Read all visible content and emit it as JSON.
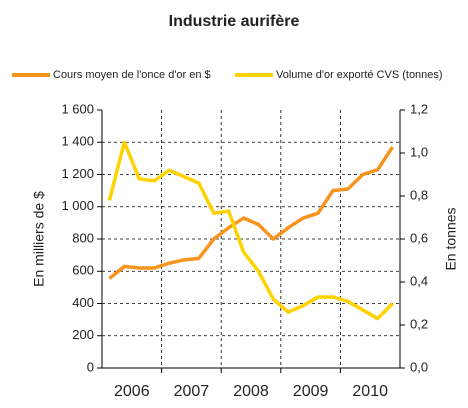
{
  "chart_data": {
    "type": "line",
    "title": "Industrie aurifère",
    "categories": [
      "2006",
      null,
      null,
      null,
      "2007",
      null,
      null,
      null,
      "2008",
      null,
      null,
      null,
      "2009",
      null,
      null,
      null,
      "2010",
      null,
      null,
      null
    ],
    "series": [
      {
        "name": "Cours moyen de l'once d'or en $",
        "color": "#f7941d",
        "values": [
          555,
          630,
          620,
          620,
          650,
          670,
          680,
          800,
          870,
          930,
          890,
          800,
          870,
          930,
          960,
          1100,
          1110,
          1200,
          1230,
          1370
        ]
      },
      {
        "name": "Volume d'or exporté CVS (tonnes)",
        "color": "#ffd200",
        "axis": "y2",
        "values": [
          0.78,
          1.05,
          0.88,
          0.87,
          0.92,
          0.89,
          0.86,
          0.72,
          0.73,
          0.54,
          0.45,
          0.32,
          0.26,
          0.29,
          0.33,
          0.33,
          0.31,
          0.27,
          0.23,
          0.3
        ]
      }
    ],
    "ylabel": "En milliers de $",
    "y2label": "En tonnes",
    "ylim": [
      0,
      1600
    ],
    "yticks": [
      0,
      200,
      400,
      600,
      800,
      {
        "value": 1000,
        "label": "1 000"
      },
      {
        "value": 1200,
        "label": "1 200"
      },
      {
        "value": 1400,
        "label": "1 400"
      },
      {
        "value": 1600,
        "label": "1 600"
      }
    ],
    "y2lim": [
      0,
      1.2
    ],
    "y2ticks": [
      {
        "value": 0,
        "label": "0,0"
      },
      {
        "value": 0.2,
        "label": "0,2"
      },
      {
        "value": 0.4,
        "label": "0,4"
      },
      {
        "value": 0.6,
        "label": "0,6"
      },
      {
        "value": 0.8,
        "label": "0,8"
      },
      {
        "value": 1.0,
        "label": "1,0"
      },
      {
        "value": 1.2,
        "label": "1,2"
      }
    ],
    "grid": true,
    "legend": "top"
  }
}
